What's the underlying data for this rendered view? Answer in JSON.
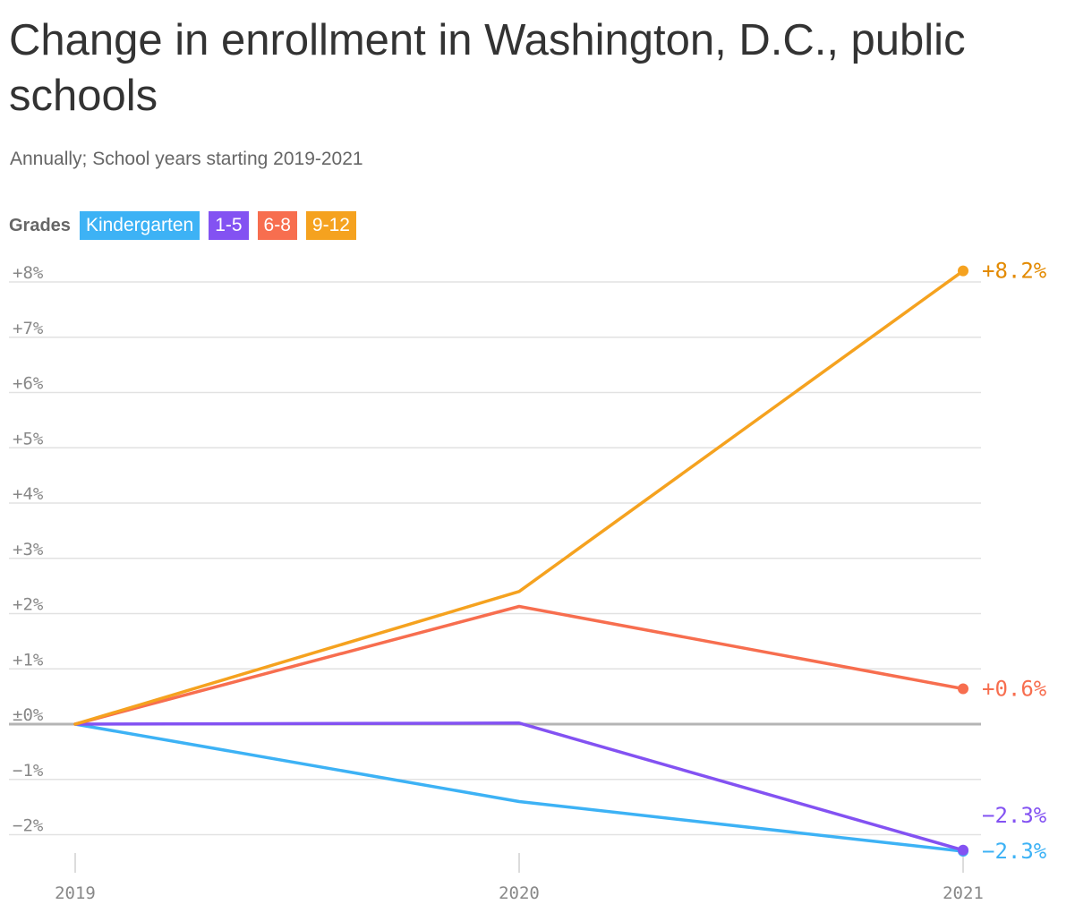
{
  "title": "Change in enrollment in Washington, D.C., public schools",
  "subtitle": "Annually; School years starting 2019-2021",
  "legend": {
    "title": "Grades",
    "items": [
      {
        "label": "Kindergarten",
        "color": "#3db2f5"
      },
      {
        "label": "1-5",
        "color": "#8352f2"
      },
      {
        "label": "6-8",
        "color": "#f76e4f"
      },
      {
        "label": "9-12",
        "color": "#f5a21f"
      }
    ]
  },
  "chart_data": {
    "type": "line",
    "x": [
      "2019",
      "2020",
      "2021"
    ],
    "ylim": [
      -2.4,
      8.2
    ],
    "yticks": [
      8,
      7,
      6,
      5,
      4,
      3,
      2,
      1,
      0,
      -1,
      -2
    ],
    "ytick_labels": [
      "+8%",
      "+7%",
      "+6%",
      "+5%",
      "+4%",
      "+3%",
      "+2%",
      "+1%",
      "±0%",
      "−1%",
      "−2%"
    ],
    "grid": true,
    "zero_line": true,
    "series": [
      {
        "name": "Kindergarten",
        "color": "#3db2f5",
        "label_color": "#3db2f5",
        "values": [
          0,
          -1.4,
          -2.3
        ],
        "end_label": "−2.3%"
      },
      {
        "name": "1-5",
        "color": "#8352f2",
        "label_color": "#8352f2",
        "values": [
          0,
          0.02,
          -2.28
        ],
        "end_label": "−2.3%"
      },
      {
        "name": "6-8",
        "color": "#f76e4f",
        "label_color": "#f76e4f",
        "values": [
          0,
          2.13,
          0.64
        ],
        "end_label": "+0.6%"
      },
      {
        "name": "9-12",
        "color": "#f5a21f",
        "label_color": "#e38a00",
        "values": [
          0,
          2.4,
          8.2
        ],
        "end_label": "+8.2%"
      }
    ]
  }
}
